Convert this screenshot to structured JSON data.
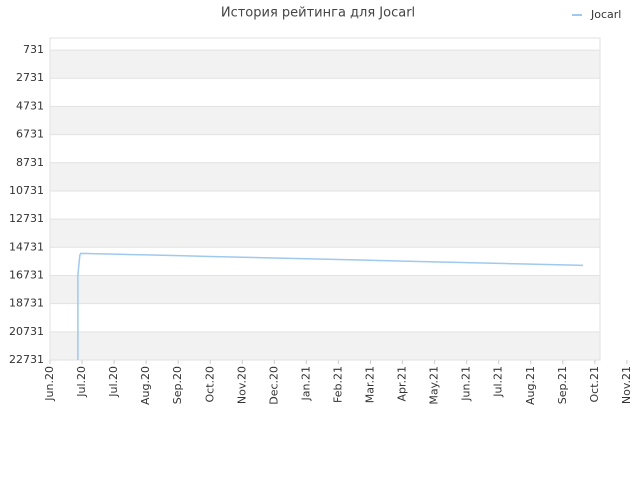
{
  "chart_data": {
    "type": "line",
    "title": "История рейтинга для Jocarl",
    "y_inverted": true,
    "xlim": [
      0,
      17.16
    ],
    "xticks": [
      {
        "value": 0,
        "label": "Jun.20"
      },
      {
        "value": 1,
        "label": "Jul.20"
      },
      {
        "value": 2,
        "label": "Jul.20"
      },
      {
        "value": 3,
        "label": "Aug.20"
      },
      {
        "value": 4,
        "label": "Sep.20"
      },
      {
        "value": 5,
        "label": "Oct.20"
      },
      {
        "value": 6,
        "label": "Nov.20"
      },
      {
        "value": 7,
        "label": "Dec.20"
      },
      {
        "value": 8,
        "label": "Jan.21"
      },
      {
        "value": 9,
        "label": "Feb.21"
      },
      {
        "value": 10,
        "label": "Mar.21"
      },
      {
        "value": 11,
        "label": "Apr.21"
      },
      {
        "value": 12,
        "label": "May.21"
      },
      {
        "value": 13,
        "label": "Jun.21"
      },
      {
        "value": 14,
        "label": "Jul.21"
      },
      {
        "value": 15,
        "label": "Aug.21"
      },
      {
        "value": 16,
        "label": "Sep.21"
      },
      {
        "value": 17,
        "label": "Oct.21"
      },
      {
        "value": 18,
        "label": "Nov.21"
      }
    ],
    "ylim": [
      -126,
      22731
    ],
    "yticks": [
      731,
      2731,
      4731,
      6731,
      8731,
      10731,
      12731,
      14731,
      16731,
      18731,
      20731,
      22731
    ],
    "grid": true,
    "legend": "top-right",
    "series": [
      {
        "name": "Jocarl",
        "color": "#9fc9f0",
        "x": [
          0.87,
          0.87,
          0.9,
          0.93,
          0.96,
          2,
          3,
          4,
          5,
          6,
          7,
          8,
          9,
          10,
          11,
          12,
          13,
          14,
          15,
          16,
          16.63
        ],
        "values": [
          22731,
          16700,
          16000,
          15300,
          15160,
          15217,
          15272,
          15326,
          15381,
          15436,
          15490,
          15545,
          15600,
          15654,
          15709,
          15764,
          15818,
          15873,
          15928,
          15983,
          16017
        ]
      }
    ]
  }
}
